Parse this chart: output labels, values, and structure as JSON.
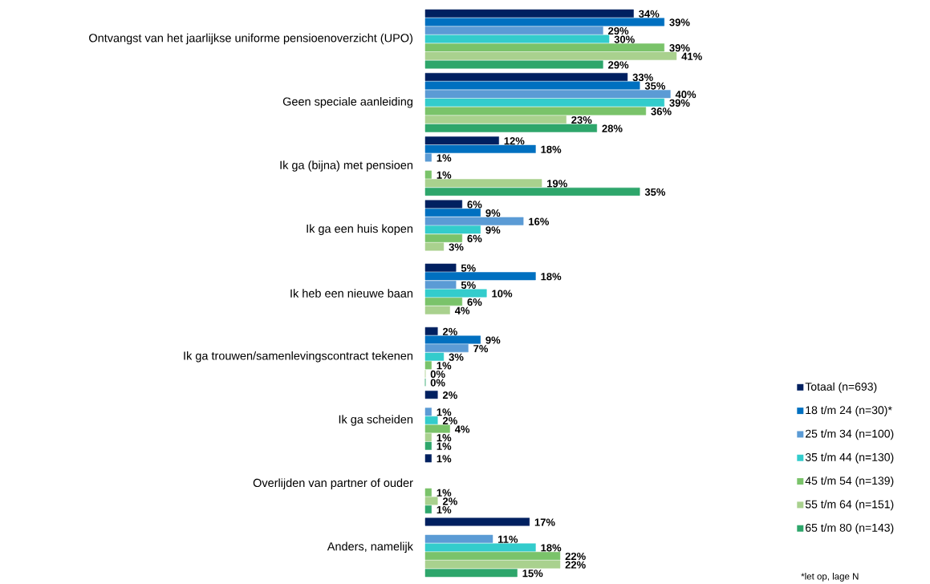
{
  "chart_data": {
    "type": "bar",
    "orientation": "horizontal",
    "categories": [
      "Ontvangst van het jaarlijkse uniforme pensioenoverzicht (UPO)",
      "Geen speciale aanleiding",
      "Ik ga (bijna) met pensioen",
      "Ik ga een huis kopen",
      "Ik heb een nieuwe baan",
      "Ik ga trouwen/samenlevingscontract tekenen",
      "Ik ga scheiden",
      "Overlijden van partner of ouder",
      "Anders, namelijk"
    ],
    "series": [
      {
        "name": "Totaal (n=693)",
        "color": "#002060",
        "values": [
          34,
          33,
          12,
          6,
          5,
          2,
          2,
          1,
          17
        ],
        "value_labels": [
          "34%",
          "33%",
          "12%",
          "6%",
          "5%",
          "2%",
          "2%",
          "1%",
          "17%"
        ]
      },
      {
        "name": "18 t/m 24  (n=30)*",
        "color": "#0070c0",
        "values": [
          39,
          35,
          18,
          9,
          18,
          9,
          null,
          null,
          null
        ],
        "value_labels": [
          "39%",
          "35%",
          "18%",
          "9%",
          "18%",
          "9%",
          null,
          null,
          null
        ]
      },
      {
        "name": "25 t/m 34  (n=100)",
        "color": "#5b9bd5",
        "values": [
          29,
          40,
          1,
          16,
          5,
          7,
          1,
          null,
          11
        ],
        "value_labels": [
          "29%",
          "40%",
          "1%",
          "16%",
          "5%",
          "7%",
          "1%",
          null,
          "11%"
        ]
      },
      {
        "name": "35 t/m 44  (n=130)",
        "color": "#33cccc",
        "values": [
          30,
          39,
          null,
          9,
          10,
          3,
          2,
          null,
          18
        ],
        "value_labels": [
          "30%",
          "39%",
          null,
          "9%",
          "10%",
          "3%",
          "2%",
          null,
          "18%"
        ]
      },
      {
        "name": "45 t/m 54  (n=139)",
        "color": "#7ac36a",
        "values": [
          39,
          36,
          1,
          6,
          6,
          1,
          4,
          1,
          22
        ],
        "value_labels": [
          "39%",
          "36%",
          "1%",
          "6%",
          "6%",
          "1%",
          "4%",
          "1%",
          "22%"
        ]
      },
      {
        "name": "55 t/m 64  (n=151)",
        "color": "#a9d18e",
        "values": [
          41,
          23,
          19,
          3,
          4,
          0,
          1,
          2,
          22
        ],
        "value_labels": [
          "41%",
          "23%",
          "19%",
          "3%",
          "4%",
          "0%",
          "1%",
          "2%",
          "22%"
        ]
      },
      {
        "name": "65 t/m 80  (n=143)",
        "color": "#2ea66b",
        "values": [
          29,
          28,
          35,
          null,
          null,
          0,
          1,
          1,
          15
        ],
        "value_labels": [
          "29%",
          "28%",
          "35%",
          null,
          null,
          "0%",
          "1%",
          "1%",
          "15%"
        ]
      }
    ],
    "legend": "right",
    "annotations": [
      "*let op, lage N"
    ]
  }
}
